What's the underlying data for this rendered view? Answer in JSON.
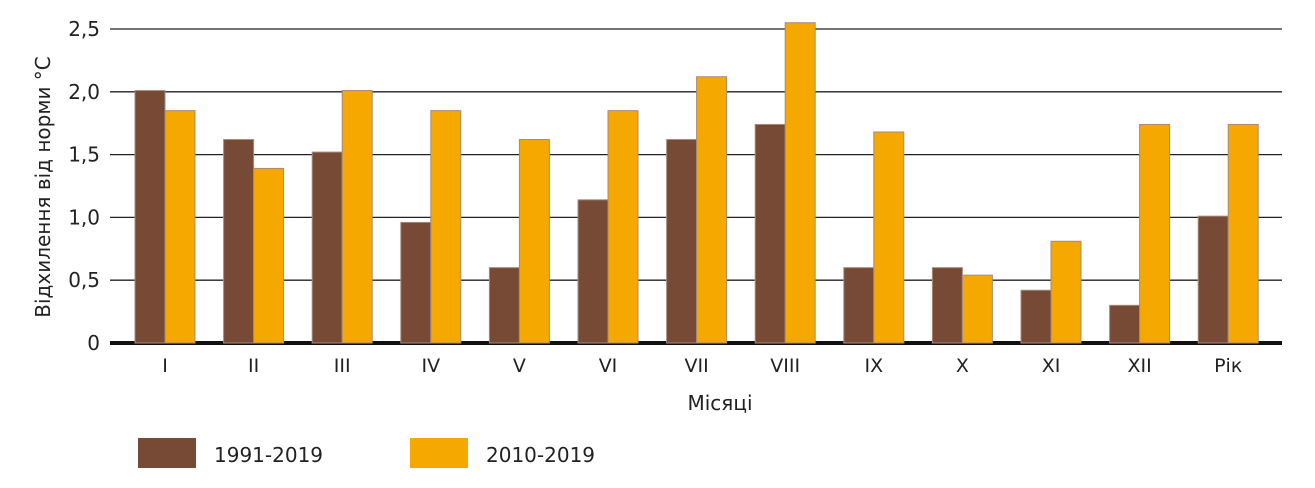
{
  "chart_data": {
    "type": "bar",
    "title": "",
    "xlabel": "Місяці",
    "ylabel": "Відхилення від норми °C",
    "ylabel_main": "Відхилення від норми ",
    "ylabel_sup": "0",
    "ylabel_unit": "C",
    "ylim": [
      0,
      2.5
    ],
    "yticks": [
      0,
      0.5,
      1.0,
      1.5,
      2.0,
      2.5
    ],
    "ytick_labels": [
      "0",
      "0,5",
      "1,0",
      "1,5",
      "2,0",
      "2,5"
    ],
    "grid": true,
    "legend_position": "bottom-left",
    "categories": [
      "I",
      "II",
      "III",
      "IV",
      "V",
      "VI",
      "VII",
      "VIII",
      "IX",
      "X",
      "XI",
      "XII",
      "Рік"
    ],
    "series": [
      {
        "name": "1991-2019",
        "color": "#774a36",
        "values": [
          2.01,
          1.62,
          1.52,
          0.96,
          0.6,
          1.14,
          1.62,
          1.74,
          0.6,
          0.6,
          0.42,
          0.3,
          1.01
        ]
      },
      {
        "name": "2010-2019",
        "color": "#f5a800",
        "values": [
          1.85,
          1.39,
          2.01,
          1.85,
          1.62,
          1.85,
          2.12,
          2.55,
          1.68,
          0.54,
          0.81,
          1.74,
          1.74
        ]
      }
    ]
  }
}
